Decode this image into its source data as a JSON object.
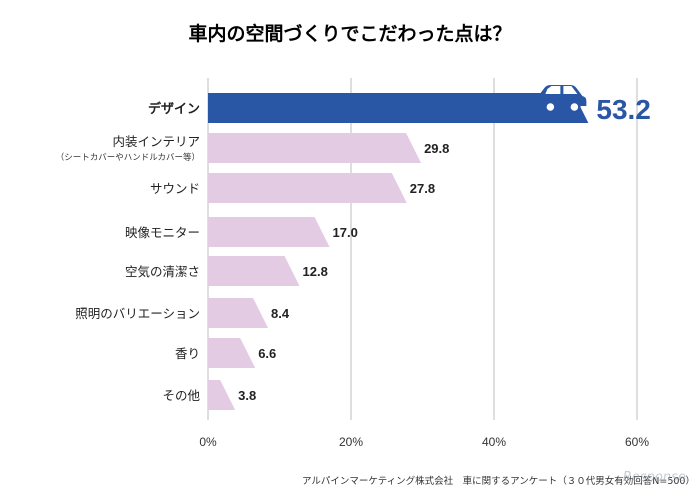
{
  "chart_data": {
    "type": "bar",
    "orientation": "horizontal",
    "title": "車内の空間づくりでこだわった点は？",
    "categories": [
      "デザイン",
      "内装インテリア",
      "サウンド",
      "映像モニター",
      "空気の清潔さ",
      "照明のバリエーション",
      "香り",
      "その他"
    ],
    "category_sublabels": [
      "",
      "（シートカバーやハンドルカバー等）",
      "",
      "",
      "",
      "",
      "",
      ""
    ],
    "values": [
      53.2,
      29.8,
      27.8,
      17.0,
      12.8,
      8.4,
      6.6,
      3.8
    ],
    "value_labels": [
      "53.2",
      "29.8",
      "27.8",
      "17.0",
      "12.8",
      "8.4",
      "6.6",
      "3.8"
    ],
    "highlight_index": 0,
    "xlim": [
      0,
      60
    ],
    "xticks": [
      "0%",
      "20%",
      "40%",
      "60%"
    ],
    "xtick_values": [
      0,
      20,
      40,
      60
    ],
    "grid": true,
    "colors": {
      "highlight": "#2a56a6",
      "bar": "#e3cce3",
      "grid": "#bdbdbd",
      "car_icon": "#2a56a6"
    },
    "icon": "car-icon"
  },
  "source": "アルパインマーケティング株式会社　車に関するアンケート（３０代男女有効回答N=500）",
  "watermark": "Response."
}
